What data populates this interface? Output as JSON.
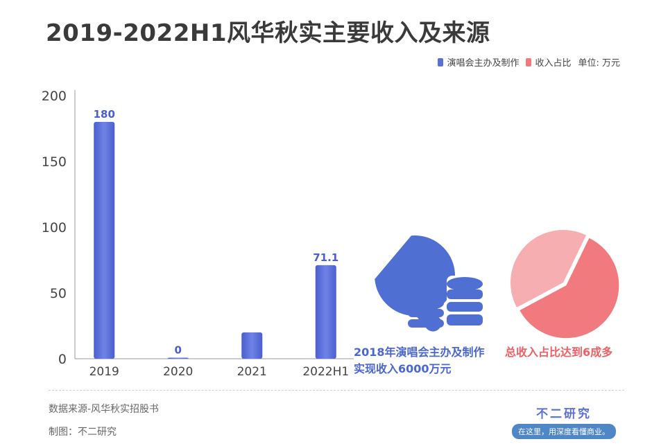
{
  "title": "2019-2022H1风华秋实主要收入及来源",
  "legend": {
    "series_label": "演唱会主办及制作",
    "ratio_label": "收入占比",
    "unit": "单位: 万元"
  },
  "colors": {
    "bar": "#5b6fd6",
    "pie_main": "#f07a7e",
    "pie_rest": "#f6aeb0",
    "accent_text_blue": "#4a66d0",
    "accent_text_red": "#ef5f64",
    "icon_blue": "#4f6fd2"
  },
  "chart_data": {
    "type": "bar",
    "categories": [
      "2019",
      "2020",
      "2021",
      "2022H1"
    ],
    "values": [
      180,
      0,
      20,
      71.1
    ],
    "data_labels": [
      "180",
      "0",
      "",
      "71.1"
    ],
    "ylim": [
      0,
      200
    ],
    "yticks": [
      0,
      50,
      100,
      150,
      200
    ],
    "grid": false
  },
  "pie": {
    "icon": "pie-chart-icon",
    "main_share": 0.6,
    "caption": "总收入占比达到6成多"
  },
  "note": {
    "icon": "magnifier-coins-icon",
    "line1": "2018年演唱会主办及制作",
    "line2": "实现收入6000万元"
  },
  "footer": {
    "source": "数据来源-风华秋实招股书",
    "credit": "制图：不二研究",
    "brand_name": "不二研究",
    "brand_tagline": "在这里，用深度看懂商业。"
  }
}
